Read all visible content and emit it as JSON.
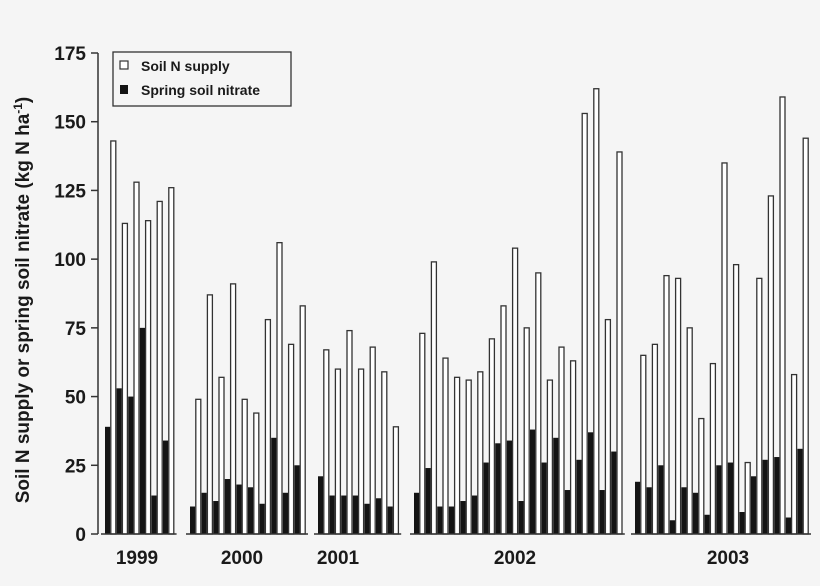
{
  "chart_data": {
    "type": "bar",
    "title": "",
    "xlabel": "",
    "ylabel": "Soil N supply or spring soil nitrate (kg N ha⁻¹)",
    "ylim": [
      0,
      175
    ],
    "yticks": [
      0,
      25,
      50,
      75,
      100,
      125,
      150,
      175
    ],
    "grid": false,
    "legend_position": "upper-left",
    "legend": [
      "Soil N supply",
      "Spring soil nitrate"
    ],
    "groups": [
      {
        "label": "1999",
        "soil_n_supply": [
          143,
          113,
          128,
          114,
          121,
          126
        ],
        "spring_soil_nitrate": [
          39,
          53,
          50,
          75,
          14,
          34
        ]
      },
      {
        "label": "2000",
        "soil_n_supply": [
          49,
          87,
          57,
          91,
          49,
          44,
          78,
          106,
          69,
          83
        ],
        "spring_soil_nitrate": [
          10,
          15,
          12,
          20,
          18,
          17,
          11,
          35,
          15,
          25
        ]
      },
      {
        "label": "2001",
        "soil_n_supply": [
          67,
          60,
          74,
          60,
          68,
          59,
          39
        ],
        "spring_soil_nitrate": [
          21,
          14,
          14,
          14,
          11,
          13,
          10
        ]
      },
      {
        "label": "2002",
        "soil_n_supply": [
          73,
          99,
          64,
          57,
          56,
          59,
          71,
          83,
          104,
          75,
          95,
          56,
          68,
          63,
          153,
          162,
          78,
          139
        ],
        "spring_soil_nitrate": [
          15,
          24,
          10,
          10,
          12,
          14,
          26,
          33,
          34,
          12,
          38,
          26,
          35,
          16,
          27,
          37,
          16,
          30
        ]
      },
      {
        "label": "2003",
        "soil_n_supply": [
          65,
          69,
          94,
          93,
          75,
          42,
          62,
          135,
          98,
          26,
          93,
          123,
          159,
          58,
          144
        ],
        "spring_soil_nitrate": [
          19,
          17,
          25,
          5,
          17,
          15,
          7,
          25,
          26,
          8,
          21,
          27,
          28,
          6,
          31
        ]
      }
    ],
    "series": [
      {
        "name": "Soil N supply",
        "color": "#ffffff",
        "stroke": "#333333"
      },
      {
        "name": "Spring soil nitrate",
        "color": "#141414"
      }
    ]
  },
  "legend": {
    "item1": "Soil N supply",
    "item2": "Spring soil nitrate"
  },
  "axis": {
    "ylabel_main": "Soil N supply or spring soil nitrate (kg N ha",
    "ylabel_sup": "-1",
    "ylabel_close": ")"
  }
}
